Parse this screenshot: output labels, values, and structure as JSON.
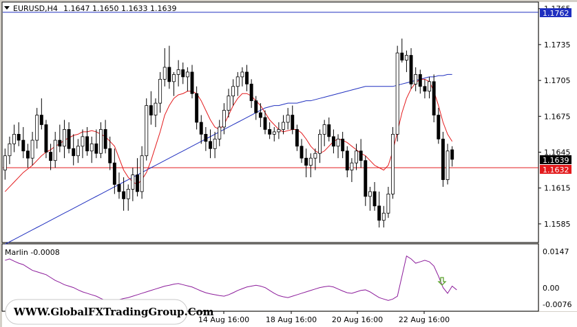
{
  "header": {
    "symbol": "EURUSD,H4",
    "ohlc": "1.1647 1.1650 1.1633 1.1639"
  },
  "price_tags": {
    "resistance": "1.1762",
    "current": "1.1639",
    "support": "1.1632"
  },
  "indicator": {
    "label": "Marlin -0.0008",
    "levels": [
      "0.0147",
      "0.00",
      "-0.0076"
    ]
  },
  "watermark": "WWW.GlobalFXTradingGroup.Com",
  "colors": {
    "background": "#ffffff",
    "frame": "#d4d0c8",
    "bull": "#ffffff",
    "bear": "#000000",
    "fast_ma": "#e31a1c",
    "slow_ma": "#1f2fbf",
    "hline_resistance": "#1f2fbf",
    "hline_support": "#e31a1c",
    "oscillator": "#8b1a9a",
    "arrow": "#5aa02c"
  },
  "chart_data": {
    "type": "candlestick",
    "ylim": [
      1.157,
      1.177
    ],
    "y_ticks": [
      "1.1765",
      "1.1735",
      "1.1705",
      "1.1675",
      "1.1645",
      "1.1615",
      "1.1585"
    ],
    "x_ticks": [
      "14 Aug 16:00",
      "18 Aug 16:00",
      "20 Aug 16:00",
      "22 Aug 16:00"
    ],
    "hlines": [
      1.1762,
      1.1632
    ],
    "ohlc": [
      [
        1.163,
        1.1648,
        1.1622,
        1.1642
      ],
      [
        1.1642,
        1.1658,
        1.1635,
        1.1652
      ],
      [
        1.1652,
        1.1668,
        1.1645,
        1.166
      ],
      [
        1.166,
        1.167,
        1.165,
        1.1655
      ],
      [
        1.1655,
        1.1666,
        1.164,
        1.1646
      ],
      [
        1.1646,
        1.1652,
        1.1632,
        1.164
      ],
      [
        1.164,
        1.1662,
        1.1634,
        1.1655
      ],
      [
        1.1655,
        1.1682,
        1.1648,
        1.1676
      ],
      [
        1.1676,
        1.169,
        1.1664,
        1.1668
      ],
      [
        1.1668,
        1.1672,
        1.164,
        1.1645
      ],
      [
        1.1645,
        1.1652,
        1.163,
        1.1638
      ],
      [
        1.1638,
        1.1662,
        1.1632,
        1.1655
      ],
      [
        1.1655,
        1.1668,
        1.1645,
        1.165
      ],
      [
        1.165,
        1.1672,
        1.164,
        1.1664
      ],
      [
        1.1664,
        1.167,
        1.1644,
        1.1648
      ],
      [
        1.1648,
        1.166,
        1.1634,
        1.1642
      ],
      [
        1.1642,
        1.1656,
        1.1636,
        1.165
      ],
      [
        1.165,
        1.1664,
        1.164,
        1.1658
      ],
      [
        1.1658,
        1.1666,
        1.1642,
        1.1646
      ],
      [
        1.1646,
        1.1658,
        1.1636,
        1.1652
      ],
      [
        1.1652,
        1.1664,
        1.164,
        1.1644
      ],
      [
        1.1644,
        1.167,
        1.164,
        1.1664
      ],
      [
        1.1664,
        1.1672,
        1.1644,
        1.1648
      ],
      [
        1.1648,
        1.1658,
        1.163,
        1.1636
      ],
      [
        1.1636,
        1.1648,
        1.161,
        1.1618
      ],
      [
        1.1618,
        1.1628,
        1.1606,
        1.1612
      ],
      [
        1.1612,
        1.1624,
        1.1596,
        1.1606
      ],
      [
        1.1606,
        1.1618,
        1.1596,
        1.1614
      ],
      [
        1.1614,
        1.1632,
        1.1604,
        1.1626
      ],
      [
        1.1626,
        1.164,
        1.1608,
        1.1612
      ],
      [
        1.1612,
        1.165,
        1.1606,
        1.1642
      ],
      [
        1.1642,
        1.169,
        1.1638,
        1.1684
      ],
      [
        1.1684,
        1.1696,
        1.1668,
        1.1676
      ],
      [
        1.1676,
        1.169,
        1.1666,
        1.1686
      ],
      [
        1.1686,
        1.1712,
        1.1678,
        1.1706
      ],
      [
        1.1706,
        1.1732,
        1.17,
        1.1716
      ],
      [
        1.1716,
        1.1734,
        1.1698,
        1.1704
      ],
      [
        1.1704,
        1.1712,
        1.1692,
        1.171
      ],
      [
        1.171,
        1.1722,
        1.17,
        1.1714
      ],
      [
        1.1714,
        1.172,
        1.1702,
        1.1708
      ],
      [
        1.1708,
        1.1716,
        1.1696,
        1.1712
      ],
      [
        1.1712,
        1.1718,
        1.169,
        1.1694
      ],
      [
        1.1694,
        1.17,
        1.1664,
        1.167
      ],
      [
        1.167,
        1.1676,
        1.1652,
        1.166
      ],
      [
        1.166,
        1.1666,
        1.1646,
        1.1654
      ],
      [
        1.1654,
        1.1664,
        1.164,
        1.1648
      ],
      [
        1.1648,
        1.1662,
        1.164,
        1.1656
      ],
      [
        1.1656,
        1.1672,
        1.165,
        1.1666
      ],
      [
        1.1666,
        1.1686,
        1.166,
        1.168
      ],
      [
        1.168,
        1.1698,
        1.1674,
        1.1692
      ],
      [
        1.1692,
        1.1706,
        1.1684,
        1.17
      ],
      [
        1.17,
        1.1712,
        1.1692,
        1.1708
      ],
      [
        1.1708,
        1.1716,
        1.17,
        1.1712
      ],
      [
        1.1712,
        1.1718,
        1.1696,
        1.1702
      ],
      [
        1.1702,
        1.1706,
        1.1682,
        1.1688
      ],
      [
        1.1688,
        1.1692,
        1.1672,
        1.1678
      ],
      [
        1.1678,
        1.1686,
        1.1666,
        1.1674
      ],
      [
        1.1674,
        1.168,
        1.166,
        1.1664
      ],
      [
        1.1664,
        1.167,
        1.1656,
        1.166
      ],
      [
        1.166,
        1.1666,
        1.1654,
        1.1662
      ],
      [
        1.1662,
        1.167,
        1.1656,
        1.1664
      ],
      [
        1.1664,
        1.1676,
        1.166,
        1.167
      ],
      [
        1.167,
        1.1682,
        1.1664,
        1.1676
      ],
      [
        1.1676,
        1.1684,
        1.166,
        1.1664
      ],
      [
        1.1664,
        1.1668,
        1.1646,
        1.165
      ],
      [
        1.165,
        1.1656,
        1.1636,
        1.164
      ],
      [
        1.164,
        1.1648,
        1.1624,
        1.1634
      ],
      [
        1.1634,
        1.1644,
        1.1624,
        1.164
      ],
      [
        1.164,
        1.1648,
        1.163,
        1.1644
      ],
      [
        1.1644,
        1.1664,
        1.1636,
        1.166
      ],
      [
        1.166,
        1.1672,
        1.165,
        1.1668
      ],
      [
        1.1668,
        1.1674,
        1.1654,
        1.1658
      ],
      [
        1.1658,
        1.1664,
        1.1644,
        1.165
      ],
      [
        1.165,
        1.166,
        1.164,
        1.1656
      ],
      [
        1.1656,
        1.1662,
        1.164,
        1.1646
      ],
      [
        1.1646,
        1.165,
        1.1624,
        1.163
      ],
      [
        1.163,
        1.164,
        1.162,
        1.1636
      ],
      [
        1.1636,
        1.1652,
        1.163,
        1.1646
      ],
      [
        1.1646,
        1.1656,
        1.1632,
        1.1638
      ],
      [
        1.1638,
        1.1642,
        1.16,
        1.1608
      ],
      [
        1.1608,
        1.1616,
        1.1596,
        1.1612
      ],
      [
        1.1612,
        1.162,
        1.1596,
        1.16
      ],
      [
        1.16,
        1.1612,
        1.1582,
        1.1588
      ],
      [
        1.1588,
        1.16,
        1.1582,
        1.1594
      ],
      [
        1.1594,
        1.1616,
        1.159,
        1.161
      ],
      [
        1.161,
        1.1666,
        1.1606,
        1.166
      ],
      [
        1.166,
        1.1734,
        1.1654,
        1.1728
      ],
      [
        1.1728,
        1.174,
        1.172,
        1.1722
      ],
      [
        1.1722,
        1.173,
        1.1712,
        1.1726
      ],
      [
        1.1726,
        1.1732,
        1.1698,
        1.1702
      ],
      [
        1.1702,
        1.1716,
        1.1696,
        1.171
      ],
      [
        1.171,
        1.1714,
        1.1694,
        1.17
      ],
      [
        1.17,
        1.1706,
        1.169,
        1.1696
      ],
      [
        1.1696,
        1.1708,
        1.169,
        1.1704
      ],
      [
        1.1704,
        1.171,
        1.167,
        1.1676
      ],
      [
        1.1676,
        1.1682,
        1.1652,
        1.1656
      ],
      [
        1.1656,
        1.1662,
        1.1616,
        1.1622
      ],
      [
        1.1622,
        1.1652,
        1.1618,
        1.1646
      ],
      [
        1.1647,
        1.165,
        1.1633,
        1.1639
      ]
    ],
    "fast_ma": [
      1.1612,
      1.1616,
      1.162,
      1.1624,
      1.1628,
      1.1631,
      1.1634,
      1.1638,
      1.1642,
      1.1645,
      1.1647,
      1.165,
      1.1652,
      1.1655,
      1.1657,
      1.1659,
      1.166,
      1.1662,
      1.1662,
      1.1663,
      1.1662,
      1.166,
      1.1658,
      1.1654,
      1.165,
      1.164,
      1.163,
      1.1624,
      1.162,
      1.1618,
      1.1622,
      1.1628,
      1.1638,
      1.165,
      1.1662,
      1.1676,
      1.1684,
      1.169,
      1.1693,
      1.1694,
      1.1696,
      1.1696,
      1.1694,
      1.1688,
      1.168,
      1.1672,
      1.1666,
      1.1664,
      1.1668,
      1.1676,
      1.1684,
      1.169,
      1.1694,
      1.1694,
      1.1692,
      1.1688,
      1.1684,
      1.1678,
      1.1672,
      1.1668,
      1.1664,
      1.1662,
      1.1663,
      1.1664,
      1.1664,
      1.1661,
      1.1656,
      1.165,
      1.1646,
      1.1644,
      1.1646,
      1.165,
      1.1654,
      1.1656,
      1.1655,
      1.1653,
      1.165,
      1.1647,
      1.1644,
      1.1642,
      1.1638,
      1.1634,
      1.1632,
      1.163,
      1.1634,
      1.1646,
      1.1662,
      1.1678,
      1.169,
      1.1698,
      1.1703,
      1.1706,
      1.1706,
      1.1704,
      1.1696,
      1.1684,
      1.167,
      1.166,
      1.1654
    ],
    "slow_ma": [
      1.1568,
      1.157,
      1.1572,
      1.1574,
      1.1576,
      1.1578,
      1.158,
      1.1582,
      1.1584,
      1.1586,
      1.1588,
      1.159,
      1.1592,
      1.1594,
      1.1596,
      1.1598,
      1.16,
      1.1602,
      1.1604,
      1.1606,
      1.1608,
      1.161,
      1.1612,
      1.1614,
      1.1616,
      1.1618,
      1.162,
      1.1622,
      1.1624,
      1.1626,
      1.1628,
      1.163,
      1.1632,
      1.1634,
      1.1636,
      1.1638,
      1.164,
      1.1642,
      1.1644,
      1.1646,
      1.1648,
      1.165,
      1.1652,
      1.1654,
      1.1656,
      1.1658,
      1.166,
      1.1662,
      1.1664,
      1.1666,
      1.1668,
      1.167,
      1.1672,
      1.1674,
      1.1676,
      1.1678,
      1.168,
      1.1682,
      1.1683,
      1.1684,
      1.1684,
      1.1685,
      1.1686,
      1.1686,
      1.1686,
      1.1687,
      1.1688,
      1.1688,
      1.1689,
      1.169,
      1.1691,
      1.1692,
      1.1693,
      1.1694,
      1.1695,
      1.1696,
      1.1697,
      1.1698,
      1.1699,
      1.17,
      1.17,
      1.17,
      1.17,
      1.17,
      1.17,
      1.17,
      1.1701,
      1.1702,
      1.1703,
      1.1704,
      1.1705,
      1.1706,
      1.1707,
      1.1708,
      1.1708,
      1.1709,
      1.1709,
      1.171,
      1.171
    ],
    "oscillator": {
      "label": "Marlin",
      "ylim": [
        -0.008,
        0.015
      ],
      "values": [
        0.0095,
        0.01,
        0.0092,
        0.0085,
        0.008,
        0.007,
        0.006,
        0.0055,
        0.005,
        0.0045,
        0.0035,
        0.0025,
        0.0018,
        0.001,
        0.0005,
        0.0,
        -0.0008,
        -0.0015,
        -0.002,
        -0.0025,
        -0.003,
        -0.0038,
        -0.0045,
        -0.005,
        -0.0048,
        -0.0042,
        -0.0038,
        -0.0035,
        -0.003,
        -0.0025,
        -0.002,
        -0.0015,
        -0.001,
        -0.0005,
        0.0,
        0.0005,
        0.0008,
        0.0012,
        0.0014,
        0.001,
        0.0006,
        0.0002,
        -0.0005,
        -0.0012,
        -0.0018,
        -0.0022,
        -0.0025,
        -0.0028,
        -0.003,
        -0.0025,
        -0.0018,
        -0.001,
        -0.0004,
        0.0002,
        0.0005,
        0.0008,
        0.0005,
        0.0,
        -0.001,
        -0.002,
        -0.0028,
        -0.0032,
        -0.0035,
        -0.003,
        -0.0025,
        -0.002,
        -0.0015,
        -0.001,
        -0.0005,
        0.0,
        0.0003,
        0.0005,
        0.0002,
        -0.0005,
        -0.0012,
        -0.0018,
        -0.002,
        -0.0015,
        -0.001,
        -0.0008,
        -0.0015,
        -0.0025,
        -0.0035,
        -0.004,
        -0.0045,
        -0.004,
        -0.003,
        0.004,
        0.011,
        0.01,
        0.0085,
        0.009,
        0.0095,
        0.009,
        0.0075,
        0.004,
        0.0,
        -0.002,
        0.0005,
        -0.0008
      ]
    }
  }
}
